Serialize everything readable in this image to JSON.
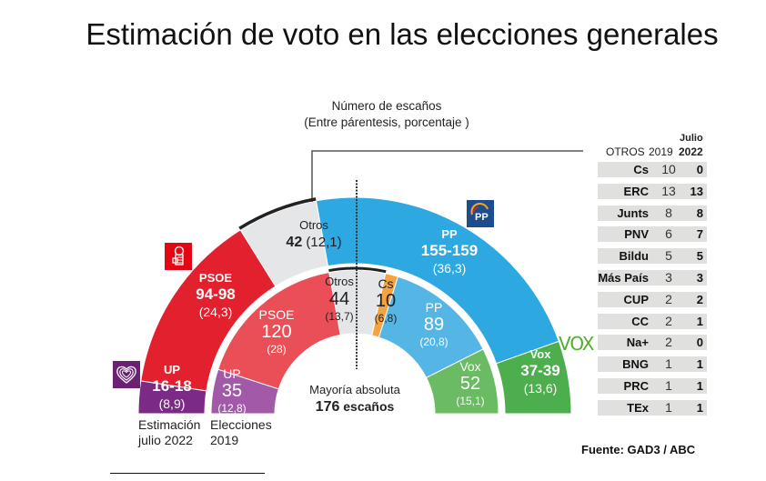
{
  "title": "Estimación de voto en las elecciones generales",
  "subtitle": {
    "line1": "Número de escaños",
    "line2": "(Entre párentesis, porcentaje )"
  },
  "chart_data": {
    "type": "hemicycle",
    "title": "Estimación de voto en las elecciones generales",
    "subtitle": "Número de escaños (Entre párentesis, porcentaje )",
    "total_seats": 350,
    "majority": {
      "label": "Mayoría absoluta",
      "seats": 176,
      "seats_label": "escaños"
    },
    "rings": [
      {
        "name": "Estimación julio 2022",
        "caption": [
          "Estimación",
          "julio 2022"
        ],
        "position": "outer",
        "series": [
          {
            "party": "UP",
            "seats_label": "16-18",
            "seats_low": 16,
            "seats_high": 18,
            "pct": "8,9",
            "color": "#7b2a85"
          },
          {
            "party": "PSOE",
            "seats_label": "94-98",
            "seats_low": 94,
            "seats_high": 98,
            "pct": "24,3",
            "color": "#e3202e"
          },
          {
            "party": "Otros",
            "seats_label": "42",
            "seats_low": 42,
            "seats_high": 42,
            "pct": "12,1",
            "color": "#e4e6e8"
          },
          {
            "party": "PP",
            "seats_label": "155-159",
            "seats_low": 155,
            "seats_high": 159,
            "pct": "36,3",
            "color": "#2ea8e0"
          },
          {
            "party": "Vox",
            "seats_label": "37-39",
            "seats_low": 37,
            "seats_high": 39,
            "pct": "13,6",
            "color": "#4cae4c"
          }
        ]
      },
      {
        "name": "Elecciones 2019",
        "caption": [
          "Elecciones",
          "2019"
        ],
        "position": "inner",
        "series": [
          {
            "party": "UP",
            "seats_label": "35",
            "seats_low": 35,
            "seats_high": 35,
            "pct": "12,8",
            "color": "#a25aa8"
          },
          {
            "party": "PSOE",
            "seats_label": "120",
            "seats_low": 120,
            "seats_high": 120,
            "pct": "28",
            "color": "#ea4e56"
          },
          {
            "party": "Otros",
            "seats_label": "44",
            "seats_low": 44,
            "seats_high": 44,
            "pct": "13,7",
            "color": "#e4e6e8"
          },
          {
            "party": "Cs",
            "seats_label": "10",
            "seats_low": 10,
            "seats_high": 10,
            "pct": "6,8",
            "color": "#f4a340"
          },
          {
            "party": "PP",
            "seats_label": "89",
            "seats_low": 89,
            "seats_high": 89,
            "pct": "20,8",
            "color": "#55b6e6"
          },
          {
            "party": "Vox",
            "seats_label": "52",
            "seats_low": 52,
            "seats_high": 52,
            "pct": "15,1",
            "color": "#6abb63"
          }
        ]
      }
    ],
    "otros_table": {
      "headers": [
        "OTROS",
        "2019",
        "Julio 2022"
      ],
      "rows": [
        {
          "party": "Cs",
          "y2019": 10,
          "y2022": 0
        },
        {
          "party": "ERC",
          "y2019": 13,
          "y2022": 13
        },
        {
          "party": "Junts",
          "y2019": 8,
          "y2022": 8
        },
        {
          "party": "PNV",
          "y2019": 6,
          "y2022": 7
        },
        {
          "party": "Bildu",
          "y2019": 5,
          "y2022": 5
        },
        {
          "party": "Más País",
          "y2019": 3,
          "y2022": 3
        },
        {
          "party": "CUP",
          "y2019": 2,
          "y2022": 2
        },
        {
          "party": "CC",
          "y2019": 2,
          "y2022": 1
        },
        {
          "party": "Na+",
          "y2019": 2,
          "y2022": 0
        },
        {
          "party": "BNG",
          "y2019": 1,
          "y2022": 1
        },
        {
          "party": "PRC",
          "y2019": 1,
          "y2022": 1
        },
        {
          "party": "TEx",
          "y2019": 1,
          "y2022": 1
        }
      ]
    },
    "source": "Fuente: GAD3 / ABC"
  },
  "labels": {
    "outer": {
      "up": {
        "name": "UP",
        "seats": "16-18",
        "pct": "(8,9)"
      },
      "psoe": {
        "name": "PSOE",
        "seats": "94-98",
        "pct": "(24,3)"
      },
      "otros": {
        "name": "Otros",
        "seats": "42",
        "pct": "(12,1)"
      },
      "pp": {
        "name": "PP",
        "seats": "155-159",
        "pct": "(36,3)"
      },
      "vox": {
        "name": "Vox",
        "seats": "37-39",
        "pct": "(13,6)"
      }
    },
    "inner": {
      "up": {
        "name": "UP",
        "seats": "35",
        "pct": "(12,8)"
      },
      "psoe": {
        "name": "PSOE",
        "seats": "120",
        "pct": "(28)"
      },
      "otros": {
        "name": "Otros",
        "seats": "44",
        "pct": "(13,7)"
      },
      "cs": {
        "name": "Cs",
        "seats": "10",
        "pct": "(6,8)"
      },
      "pp": {
        "name": "PP",
        "seats": "89",
        "pct": "(20,8)"
      },
      "vox": {
        "name": "Vox",
        "seats": "52",
        "pct": "(15,1)"
      }
    }
  },
  "captions": {
    "outer_l1": "Estimación",
    "outer_l2": "julio 2022",
    "inner_l1": "Elecciones",
    "inner_l2": "2019"
  },
  "mayoria": {
    "line1": "Mayoría absoluta",
    "seats": "176",
    "unit": " escaños"
  },
  "table": {
    "header_otros": "OTROS",
    "header_2019": "2019",
    "header_julio": "Julio",
    "header_2022": "2022"
  },
  "logos": {
    "psoe": "psoe-logo-icon",
    "pp": "pp-logo-icon",
    "pp_text": "PP",
    "up": "up-logo-icon",
    "vox": "vox-logo-icon",
    "vox_text": "VOX"
  },
  "source": "Fuente: GAD3 / ABC"
}
